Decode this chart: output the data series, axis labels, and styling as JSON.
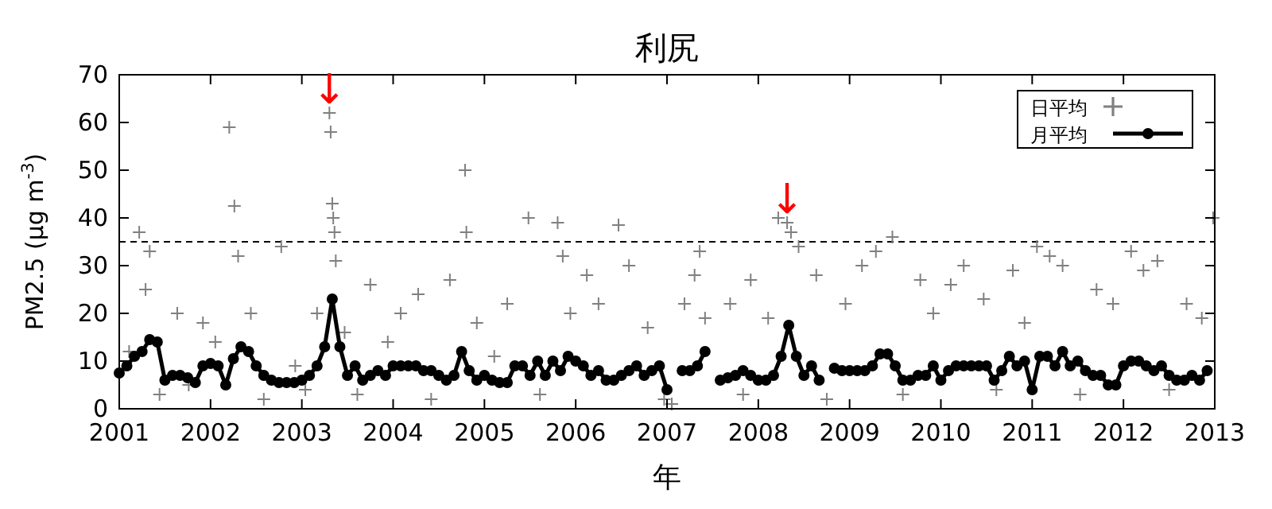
{
  "chart_data": {
    "type": "scatter",
    "title": "利尻",
    "xlabel": "年",
    "ylabel": "PM2.5 (μg m$^{-3}$)",
    "xlim": [
      "2001",
      "2013"
    ],
    "xticks": [
      "2001",
      "2002",
      "2003",
      "2004",
      "2005",
      "2006",
      "2007",
      "2008",
      "2009",
      "2010",
      "2011",
      "2012",
      "2013"
    ],
    "ylim": [
      0,
      70
    ],
    "yticks": [
      0,
      10,
      20,
      30,
      40,
      50,
      60,
      70
    ],
    "legend": "top right",
    "grid": false,
    "ref_lines": [
      {
        "axis": "y",
        "value": 35,
        "line_style": "dashed",
        "color": "#000000"
      }
    ],
    "annotations": [
      {
        "text": "↓",
        "x": "2003-04-20",
        "y": 62
      },
      {
        "text": "↓",
        "x": "2008-04-25",
        "y": 39
      }
    ],
    "series": [
      {
        "name": "日平均",
        "marker": "cross",
        "color": "#808080",
        "x": [
          "2001-02-10",
          "2001-03-20",
          "2001-04-15",
          "2001-05-01",
          "2001-06-10",
          "2001-08-20",
          "2001-10-05",
          "2001-12-01",
          "2002-01-20",
          "2002-03-15",
          "2002-04-05",
          "2002-04-20",
          "2002-06-10",
          "2002-08-01",
          "2002-10-10",
          "2002-12-05",
          "2003-01-15",
          "2003-03-01",
          "2003-04-20",
          "2003-04-25",
          "2003-05-01",
          "2003-05-05",
          "2003-05-10",
          "2003-05-15",
          "2003-06-20",
          "2003-08-10",
          "2003-10-01",
          "2003-12-10",
          "2004-02-01",
          "2004-04-10",
          "2004-06-01",
          "2004-08-15",
          "2004-10-15",
          "2004-10-20",
          "2004-12-01",
          "2005-02-10",
          "2005-04-01",
          "2005-06-25",
          "2005-08-10",
          "2005-10-20",
          "2005-11-10",
          "2005-12-10",
          "2006-02-15",
          "2006-04-01",
          "2006-06-20",
          "2006-08-01",
          "2006-10-15",
          "2006-12-20",
          "2007-01-20",
          "2007-03-10",
          "2007-04-20",
          "2007-05-10",
          "2007-06-01",
          "2007-09-10",
          "2007-11-01",
          "2007-12-01",
          "2008-02-10",
          "2008-03-20",
          "2008-04-25",
          "2008-05-10",
          "2008-06-10",
          "2008-08-20",
          "2008-10-01",
          "2008-12-15",
          "2009-02-20",
          "2009-04-15",
          "2009-06-20",
          "2009-08-01",
          "2009-10-10",
          "2009-12-01",
          "2010-02-10",
          "2010-04-01",
          "2010-06-20",
          "2010-08-10",
          "2010-10-15",
          "2010-12-01",
          "2011-01-20",
          "2011-03-10",
          "2011-05-01",
          "2011-07-10",
          "2011-09-15",
          "2011-11-20",
          "2012-02-01",
          "2012-03-20",
          "2012-05-15",
          "2012-07-01",
          "2012-09-10",
          "2012-11-10",
          "2012-12-25"
        ],
        "values": [
          12,
          37,
          25,
          33,
          3,
          20,
          5,
          18,
          14,
          59,
          42.5,
          32,
          20,
          2,
          34,
          9,
          4,
          20,
          62,
          58,
          43,
          40,
          37,
          31,
          16,
          3,
          26,
          14,
          20,
          24,
          2,
          27,
          50,
          37,
          18,
          11,
          22,
          40,
          3,
          39,
          32,
          20,
          28,
          22,
          38.5,
          30,
          17,
          2,
          1,
          22,
          28,
          33,
          19,
          22,
          3,
          27,
          19,
          40,
          39,
          37,
          34,
          28,
          2,
          22,
          30,
          33,
          36,
          3,
          27,
          20,
          26,
          30,
          23,
          4,
          29,
          18,
          34,
          32,
          30,
          3,
          25,
          22,
          33,
          29,
          31,
          4,
          22,
          19,
          40
        ]
      },
      {
        "name": "月平均",
        "type": "line",
        "marker": "circle",
        "color": "#000000",
        "x": [
          "2001-01",
          "2001-02",
          "2001-03",
          "2001-04",
          "2001-05",
          "2001-06",
          "2001-07",
          "2001-08",
          "2001-09",
          "2001-10",
          "2001-11",
          "2001-12",
          "2002-01",
          "2002-02",
          "2002-03",
          "2002-04",
          "2002-05",
          "2002-06",
          "2002-07",
          "2002-08",
          "2002-09",
          "2002-10",
          "2002-11",
          "2002-12",
          "2003-01",
          "2003-02",
          "2003-03",
          "2003-04",
          "2003-05",
          "2003-06",
          "2003-07",
          "2003-08",
          "2003-09",
          "2003-10",
          "2003-11",
          "2003-12",
          "2004-01",
          "2004-02",
          "2004-03",
          "2004-04",
          "2004-05",
          "2004-06",
          "2004-07",
          "2004-08",
          "2004-09",
          "2004-10",
          "2004-11",
          "2004-12",
          "2005-01",
          "2005-02",
          "2005-03",
          "2005-04",
          "2005-05",
          "2005-06",
          "2005-07",
          "2005-08",
          "2005-09",
          "2005-10",
          "2005-11",
          "2005-12",
          "2006-01",
          "2006-02",
          "2006-03",
          "2006-04",
          "2006-05",
          "2006-06",
          "2006-07",
          "2006-08",
          "2006-09",
          "2006-10",
          "2006-11",
          "2006-12",
          "2007-01",
          "2007-03",
          "2007-04",
          "2007-05",
          "2007-06",
          "2007-08",
          "2007-09",
          "2007-10",
          "2007-11",
          "2007-12",
          "2008-01",
          "2008-02",
          "2008-03",
          "2008-04",
          "2008-05",
          "2008-06",
          "2008-07",
          "2008-08",
          "2008-09",
          "2008-11",
          "2008-12",
          "2009-01",
          "2009-02",
          "2009-03",
          "2009-04",
          "2009-05",
          "2009-06",
          "2009-07",
          "2009-08",
          "2009-09",
          "2009-10",
          "2009-11",
          "2009-12",
          "2010-01",
          "2010-02",
          "2010-03",
          "2010-04",
          "2010-05",
          "2010-06",
          "2010-07",
          "2010-08",
          "2010-09",
          "2010-10",
          "2010-11",
          "2010-12",
          "2011-01",
          "2011-02",
          "2011-03",
          "2011-04",
          "2011-05",
          "2011-06",
          "2011-07",
          "2011-08",
          "2011-09",
          "2011-10",
          "2011-11",
          "2011-12",
          "2012-01",
          "2012-02",
          "2012-03",
          "2012-04",
          "2012-05",
          "2012-06",
          "2012-07",
          "2012-08",
          "2012-09",
          "2012-10",
          "2012-11",
          "2012-12"
        ],
        "values": [
          7.5,
          9,
          11,
          12,
          14.5,
          14,
          6,
          7,
          7,
          6.5,
          5.5,
          9,
          9.5,
          9,
          5,
          10.5,
          13,
          12,
          9,
          7,
          6,
          5.5,
          5.5,
          5.5,
          6,
          7,
          9,
          13,
          23,
          13,
          7,
          9,
          6,
          7,
          8,
          7,
          9,
          9,
          9,
          9,
          8,
          8,
          7,
          6,
          7,
          12,
          8,
          6,
          7,
          6,
          5.5,
          5.5,
          9,
          9,
          7,
          10,
          7,
          10,
          8,
          11,
          10,
          9,
          7,
          8,
          6,
          6,
          7,
          8,
          9,
          7,
          8,
          9,
          4,
          8,
          8,
          9,
          12,
          6,
          6.5,
          7,
          8,
          7,
          6,
          6,
          7,
          11,
          17.5,
          11,
          7,
          9,
          6,
          8.5,
          8,
          8,
          8,
          8,
          9,
          11.5,
          11.5,
          9,
          6,
          6,
          7,
          7,
          9,
          6,
          8,
          9,
          9,
          9,
          9,
          9,
          6,
          8,
          11,
          9,
          10,
          4,
          11,
          11,
          9,
          12,
          9,
          10,
          8,
          7,
          7,
          5,
          5,
          9,
          10,
          10,
          9,
          8,
          9,
          7,
          6,
          6,
          7,
          6,
          8
        ]
      }
    ]
  }
}
